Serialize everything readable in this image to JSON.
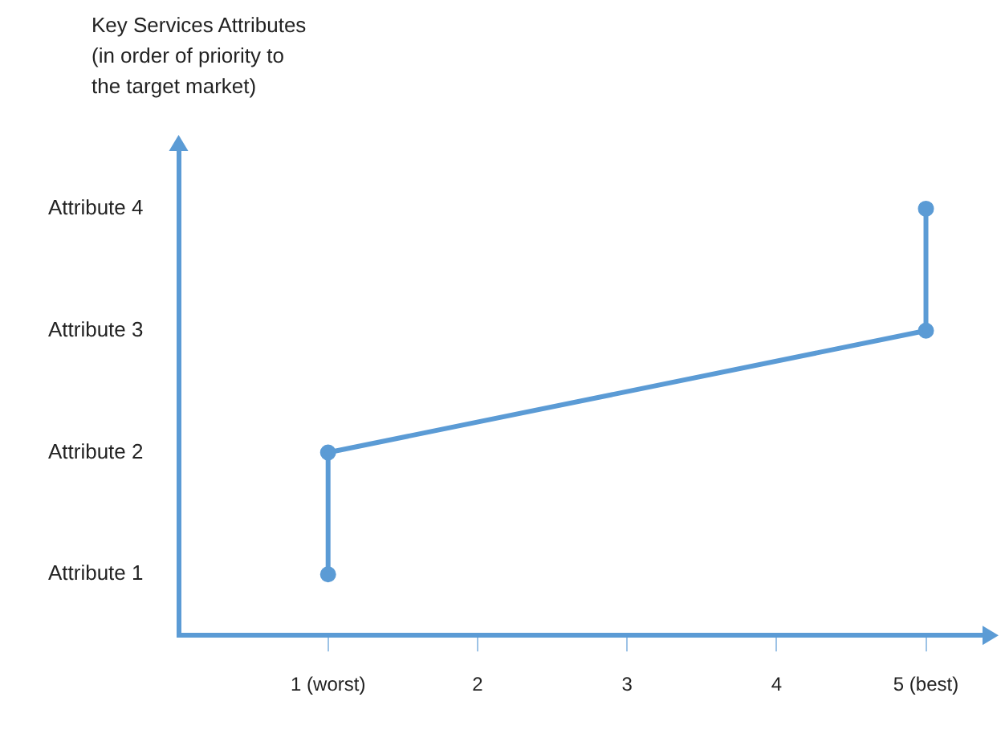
{
  "chart_data": {
    "type": "line",
    "orientation": "horizontal",
    "ylabel": "Key Services Attributes (in order of priority to the target market)",
    "categories": [
      "Attribute 4",
      "Attribute 3",
      "Attribute 2",
      "Attribute 1"
    ],
    "series": [
      {
        "color": "#5b9bd5",
        "values": [
          5,
          5,
          1,
          1
        ]
      }
    ],
    "xlim": [
      0,
      5.4
    ],
    "xticks": [
      {
        "value": 1,
        "label": "1 (worst)"
      },
      2,
      3,
      4,
      {
        "value": 5,
        "label": "5 (best)"
      }
    ],
    "grid": false,
    "legend": false,
    "marker": "circle",
    "line_style": "solid"
  }
}
